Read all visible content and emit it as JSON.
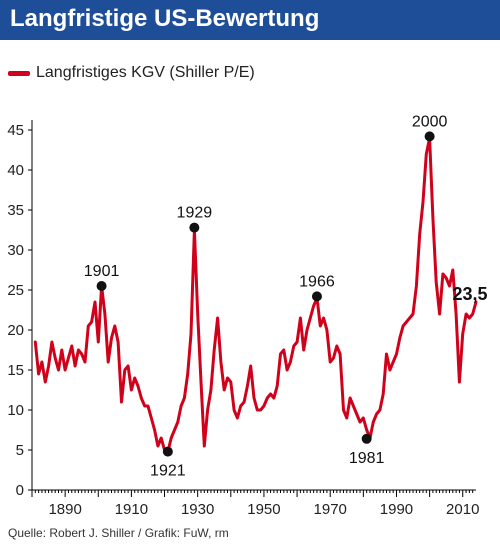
{
  "header": {
    "title": "Langfristige US-Bewertung"
  },
  "source": "Quelle: Robert J. Shiller / Grafik: FuW, rm",
  "chart_data": {
    "type": "line",
    "title": "Langfristige US-Bewertung",
    "xlabel": "",
    "ylabel": "",
    "xlim": [
      1880,
      2014
    ],
    "ylim": [
      0,
      45
    ],
    "x_ticks": [
      "1890",
      "1910",
      "1930",
      "1950",
      "1970",
      "1990",
      "2010"
    ],
    "y_ticks": [
      "0",
      "5",
      "10",
      "15",
      "20",
      "25",
      "30",
      "35",
      "40",
      "45"
    ],
    "grid": false,
    "legend_position": "top-left",
    "colors": {
      "line": "#d0021b",
      "title_bar": "#1f4e99",
      "axis": "#000000"
    },
    "series": [
      {
        "name": "Langfristiges KGV (Shiller P/E)",
        "x": [
          1881,
          1882,
          1883,
          1884,
          1885,
          1886,
          1887,
          1888,
          1889,
          1890,
          1891,
          1892,
          1893,
          1894,
          1895,
          1896,
          1897,
          1898,
          1899,
          1900,
          1901,
          1902,
          1903,
          1904,
          1905,
          1906,
          1907,
          1908,
          1909,
          1910,
          1911,
          1912,
          1913,
          1914,
          1915,
          1916,
          1917,
          1918,
          1919,
          1920,
          1921,
          1922,
          1923,
          1924,
          1925,
          1926,
          1927,
          1928,
          1929,
          1930,
          1931,
          1932,
          1933,
          1934,
          1935,
          1936,
          1937,
          1938,
          1939,
          1940,
          1941,
          1942,
          1943,
          1944,
          1945,
          1946,
          1947,
          1948,
          1949,
          1950,
          1951,
          1952,
          1953,
          1954,
          1955,
          1956,
          1957,
          1958,
          1959,
          1960,
          1961,
          1962,
          1963,
          1964,
          1965,
          1966,
          1967,
          1968,
          1969,
          1970,
          1971,
          1972,
          1973,
          1974,
          1975,
          1976,
          1977,
          1978,
          1979,
          1980,
          1981,
          1982,
          1983,
          1984,
          1985,
          1986,
          1987,
          1988,
          1989,
          1990,
          1991,
          1992,
          1993,
          1994,
          1995,
          1996,
          1997,
          1998,
          1999,
          2000,
          2001,
          2002,
          2003,
          2004,
          2005,
          2006,
          2007,
          2008,
          2009,
          2010,
          2011,
          2012,
          2013,
          2014
        ],
        "y": [
          18.5,
          14.5,
          16,
          13.5,
          15.5,
          18.5,
          16.5,
          15,
          17.5,
          15,
          16.5,
          18,
          15.5,
          17.5,
          17,
          16,
          20.5,
          21,
          23.5,
          18.5,
          25.5,
          22,
          16,
          19,
          20.5,
          18.5,
          11,
          15,
          15.5,
          12.5,
          14,
          13,
          11.5,
          10.5,
          10.5,
          9,
          7.5,
          5.5,
          6.5,
          5,
          4.8,
          6.5,
          7.5,
          8.5,
          10.5,
          11.5,
          14.5,
          19.5,
          32.5,
          22,
          13.5,
          5.5,
          10,
          12.5,
          17.5,
          21.5,
          16,
          12.5,
          14,
          13.5,
          10,
          9,
          10.5,
          11,
          13,
          15.5,
          11.5,
          10,
          10,
          10.5,
          11.5,
          12,
          11.5,
          13,
          17,
          17.5,
          15,
          16,
          18,
          18.5,
          21.5,
          17.5,
          20,
          21.5,
          23,
          24,
          20.5,
          21.5,
          20,
          16,
          16.5,
          18,
          17,
          10,
          9,
          11.5,
          10.5,
          9.5,
          8.5,
          9,
          7.5,
          6.5,
          8.5,
          9.5,
          10,
          12,
          17,
          15,
          16,
          17,
          19,
          20.5,
          21,
          21.5,
          22,
          25.5,
          32,
          36,
          42,
          44,
          34,
          26,
          22,
          27,
          26.5,
          25.5,
          27.5,
          22,
          13.5,
          19.5,
          22,
          21.5,
          22,
          23.5
        ]
      }
    ],
    "annotations": [
      {
        "label": "1901",
        "x": 1901,
        "y": 25.5
      },
      {
        "label": "1921",
        "x": 1921,
        "y": 4.8
      },
      {
        "label": "1929",
        "x": 1929,
        "y": 32.8
      },
      {
        "label": "1966",
        "x": 1966,
        "y": 24.2
      },
      {
        "label": "1981",
        "x": 1981,
        "y": 6.4
      },
      {
        "label": "2000",
        "x": 2000,
        "y": 44.2
      }
    ],
    "end_label": {
      "label": "23,5",
      "x": 2014,
      "y": 23.5
    }
  }
}
